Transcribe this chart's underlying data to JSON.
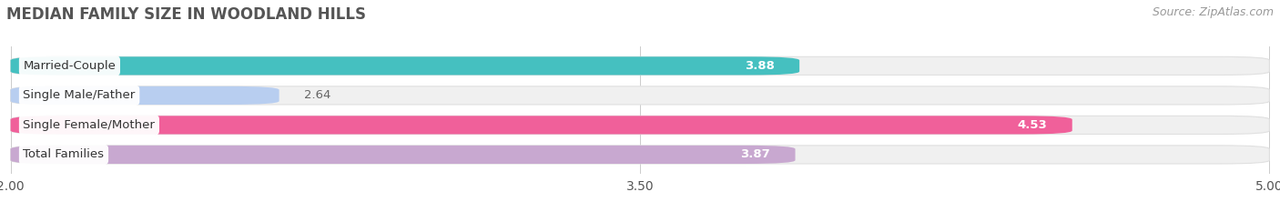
{
  "title": "MEDIAN FAMILY SIZE IN WOODLAND HILLS",
  "source": "Source: ZipAtlas.com",
  "categories": [
    "Married-Couple",
    "Single Male/Father",
    "Single Female/Mother",
    "Total Families"
  ],
  "values": [
    3.88,
    2.64,
    4.53,
    3.87
  ],
  "bar_colors": [
    "#45c0c0",
    "#b8cef0",
    "#f0609a",
    "#c8a8d0"
  ],
  "track_color": "#f0f0f0",
  "track_edge_color": "#e0e0e0",
  "x_min": 2.0,
  "x_max": 5.0,
  "x_ticks": [
    2.0,
    3.5,
    5.0
  ],
  "bar_height": 0.62,
  "background_color": "#ffffff",
  "title_fontsize": 12,
  "source_fontsize": 9,
  "tick_fontsize": 10,
  "bar_label_fontsize": 9.5,
  "value_fontsize": 9.5,
  "rounding_size": 0.12
}
